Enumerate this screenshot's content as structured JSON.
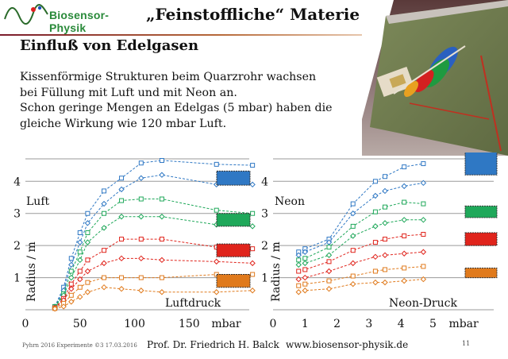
{
  "header": {
    "logo_text_main": "Biosensor-",
    "logo_text_accent": "Physik",
    "title": "„Feinstoffliche“ Materie"
  },
  "slide": {
    "subtitle": "Einfluß von Edelgasen",
    "body_lines": [
      "Kissenförmige Strukturen beim Quarzrohr wachsen",
      "bei Füllung mit Luft und mit Neon an.",
      "Schon geringe Mengen an Edelgas (5 mbar) haben die",
      "gleiche Wirkung wie 120 mbar Luft."
    ]
  },
  "colors": {
    "blue": "#2f78c4",
    "green": "#1fa85a",
    "red": "#e0241c",
    "orange": "#e07a1c",
    "title_rule": "#7b1c2c"
  },
  "chart_data": [
    {
      "type": "line",
      "title": "Luft",
      "xlabel": "Luftdruck",
      "ylabel": "Radius / m",
      "x_unit": "mbar",
      "x_ticks": [
        "0",
        "50",
        "100",
        "150"
      ],
      "x_tick_values": [
        0,
        50,
        100,
        150
      ],
      "y_ticks": [
        "1",
        "2",
        "3",
        "4"
      ],
      "y_tick_values": [
        1,
        2,
        3,
        4
      ],
      "xlim": [
        0,
        205
      ],
      "ylim": [
        0,
        4.7
      ],
      "grid": true,
      "series": [
        {
          "color": "blue",
          "marker": "square",
          "points": [
            [
              27,
              0.1
            ],
            [
              35,
              0.7
            ],
            [
              42,
              1.6
            ],
            [
              50,
              2.4
            ],
            [
              57,
              3.0
            ],
            [
              72,
              3.7
            ],
            [
              88,
              4.1
            ],
            [
              106,
              4.57
            ],
            [
              125,
              4.65
            ],
            [
              175,
              4.53
            ],
            [
              208,
              4.5
            ]
          ]
        },
        {
          "color": "blue",
          "marker": "diamond",
          "points": [
            [
              27,
              0.1
            ],
            [
              35,
              0.6
            ],
            [
              42,
              1.4
            ],
            [
              50,
              2.1
            ],
            [
              57,
              2.7
            ],
            [
              72,
              3.3
            ],
            [
              88,
              3.75
            ],
            [
              106,
              4.1
            ],
            [
              125,
              4.2
            ],
            [
              175,
              3.9
            ],
            [
              208,
              3.9
            ]
          ]
        },
        {
          "color": "green",
          "marker": "square",
          "points": [
            [
              27,
              0.1
            ],
            [
              35,
              0.5
            ],
            [
              42,
              1.2
            ],
            [
              50,
              1.8
            ],
            [
              57,
              2.4
            ],
            [
              72,
              3.0
            ],
            [
              88,
              3.4
            ],
            [
              106,
              3.45
            ],
            [
              125,
              3.45
            ],
            [
              175,
              3.1
            ],
            [
              208,
              3.0
            ]
          ]
        },
        {
          "color": "green",
          "marker": "diamond",
          "points": [
            [
              27,
              0.08
            ],
            [
              35,
              0.45
            ],
            [
              42,
              1.0
            ],
            [
              50,
              1.55
            ],
            [
              57,
              2.1
            ],
            [
              72,
              2.55
            ],
            [
              88,
              2.9
            ],
            [
              106,
              2.9
            ],
            [
              125,
              2.9
            ],
            [
              175,
              2.65
            ],
            [
              208,
              2.6
            ]
          ]
        },
        {
          "color": "red",
          "marker": "square",
          "points": [
            [
              27,
              0.06
            ],
            [
              35,
              0.35
            ],
            [
              42,
              0.8
            ],
            [
              50,
              1.2
            ],
            [
              57,
              1.55
            ],
            [
              72,
              1.85
            ],
            [
              88,
              2.2
            ],
            [
              106,
              2.2
            ],
            [
              125,
              2.2
            ],
            [
              175,
              1.95
            ],
            [
              208,
              1.9
            ]
          ]
        },
        {
          "color": "red",
          "marker": "diamond",
          "points": [
            [
              27,
              0.05
            ],
            [
              35,
              0.3
            ],
            [
              42,
              0.65
            ],
            [
              50,
              0.95
            ],
            [
              57,
              1.2
            ],
            [
              72,
              1.45
            ],
            [
              88,
              1.6
            ],
            [
              106,
              1.6
            ],
            [
              125,
              1.55
            ],
            [
              175,
              1.5
            ],
            [
              208,
              1.45
            ]
          ]
        },
        {
          "color": "orange",
          "marker": "square",
          "points": [
            [
              27,
              0.04
            ],
            [
              35,
              0.2
            ],
            [
              42,
              0.45
            ],
            [
              50,
              0.7
            ],
            [
              57,
              0.85
            ],
            [
              72,
              1.0
            ],
            [
              88,
              1.0
            ],
            [
              106,
              1.0
            ],
            [
              125,
              1.0
            ],
            [
              175,
              1.1
            ],
            [
              208,
              1.1
            ]
          ]
        },
        {
          "color": "orange",
          "marker": "diamond",
          "points": [
            [
              27,
              0.03
            ],
            [
              35,
              0.1
            ],
            [
              42,
              0.25
            ],
            [
              50,
              0.4
            ],
            [
              57,
              0.55
            ],
            [
              72,
              0.7
            ],
            [
              88,
              0.65
            ],
            [
              106,
              0.6
            ],
            [
              125,
              0.55
            ],
            [
              175,
              0.55
            ],
            [
              208,
              0.6
            ]
          ]
        }
      ],
      "legend_boxes": [
        {
          "color": "blue",
          "center": 4.1,
          "half_height": 0.22
        },
        {
          "color": "green",
          "center": 2.8,
          "half_height": 0.2
        },
        {
          "color": "red",
          "center": 1.85,
          "half_height": 0.2
        },
        {
          "color": "orange",
          "center": 0.9,
          "half_height": 0.2
        }
      ]
    },
    {
      "type": "line",
      "title": "Neon",
      "xlabel": "Neon-Druck",
      "ylabel": "Radius / m",
      "x_unit": "mbar",
      "x_ticks": [
        "0",
        "1",
        "2",
        "3",
        "4",
        "5"
      ],
      "x_tick_values": [
        0,
        1,
        2,
        3,
        4,
        5
      ],
      "y_ticks": [
        "1",
        "2",
        "3",
        "4"
      ],
      "y_tick_values": [
        1,
        2,
        3,
        4
      ],
      "xlim": [
        0,
        6.9
      ],
      "ylim": [
        0,
        4.7
      ],
      "grid": true,
      "series": [
        {
          "color": "blue",
          "marker": "square",
          "points": [
            [
              0.8,
              1.8
            ],
            [
              1.0,
              1.9
            ],
            [
              1.75,
              2.2
            ],
            [
              2.5,
              3.3
            ],
            [
              3.2,
              4.0
            ],
            [
              3.5,
              4.15
            ],
            [
              4.1,
              4.45
            ],
            [
              4.7,
              4.55
            ]
          ]
        },
        {
          "color": "blue",
          "marker": "diamond",
          "points": [
            [
              0.8,
              1.7
            ],
            [
              1.0,
              1.8
            ],
            [
              1.75,
              2.1
            ],
            [
              2.5,
              3.0
            ],
            [
              3.2,
              3.55
            ],
            [
              3.5,
              3.7
            ],
            [
              4.1,
              3.85
            ],
            [
              4.7,
              3.95
            ]
          ]
        },
        {
          "color": "green",
          "marker": "square",
          "points": [
            [
              0.8,
              1.55
            ],
            [
              1.0,
              1.6
            ],
            [
              1.75,
              1.95
            ],
            [
              2.5,
              2.6
            ],
            [
              3.2,
              3.05
            ],
            [
              3.5,
              3.2
            ],
            [
              4.1,
              3.35
            ],
            [
              4.7,
              3.3
            ]
          ]
        },
        {
          "color": "green",
          "marker": "diamond",
          "points": [
            [
              0.8,
              1.4
            ],
            [
              1.0,
              1.45
            ],
            [
              1.75,
              1.7
            ],
            [
              2.5,
              2.3
            ],
            [
              3.2,
              2.6
            ],
            [
              3.5,
              2.7
            ],
            [
              4.1,
              2.8
            ],
            [
              4.7,
              2.8
            ]
          ]
        },
        {
          "color": "red",
          "marker": "square",
          "points": [
            [
              0.8,
              1.2
            ],
            [
              1.0,
              1.25
            ],
            [
              1.75,
              1.5
            ],
            [
              2.5,
              1.85
            ],
            [
              3.2,
              2.1
            ],
            [
              3.5,
              2.2
            ],
            [
              4.1,
              2.3
            ],
            [
              4.7,
              2.35
            ]
          ]
        },
        {
          "color": "red",
          "marker": "diamond",
          "points": [
            [
              0.8,
              0.95
            ],
            [
              1.0,
              1.0
            ],
            [
              1.75,
              1.2
            ],
            [
              2.5,
              1.45
            ],
            [
              3.2,
              1.65
            ],
            [
              3.5,
              1.7
            ],
            [
              4.1,
              1.75
            ],
            [
              4.7,
              1.8
            ]
          ]
        },
        {
          "color": "orange",
          "marker": "square",
          "points": [
            [
              0.8,
              0.75
            ],
            [
              1.0,
              0.8
            ],
            [
              1.75,
              0.9
            ],
            [
              2.5,
              1.05
            ],
            [
              3.2,
              1.2
            ],
            [
              3.5,
              1.25
            ],
            [
              4.1,
              1.3
            ],
            [
              4.7,
              1.35
            ]
          ]
        },
        {
          "color": "orange",
          "marker": "diamond",
          "points": [
            [
              0.8,
              0.55
            ],
            [
              1.0,
              0.6
            ],
            [
              1.75,
              0.65
            ],
            [
              2.5,
              0.8
            ],
            [
              3.2,
              0.85
            ],
            [
              3.5,
              0.85
            ],
            [
              4.1,
              0.9
            ],
            [
              4.7,
              0.95
            ]
          ]
        }
      ],
      "legend_boxes": [
        {
          "color": "blue",
          "center": 4.6,
          "half_height": 0.4
        },
        {
          "color": "green",
          "center": 3.05,
          "half_height": 0.18
        },
        {
          "color": "red",
          "center": 2.2,
          "half_height": 0.2
        },
        {
          "color": "orange",
          "center": 1.15,
          "half_height": 0.15
        }
      ]
    }
  ],
  "footer": {
    "small": "Pyhrn 2016 Experimente ©3 17.03.2016",
    "author": "Prof. Dr. Friedrich H. Balck",
    "url": "www.biosensor-physik.de",
    "page": "11"
  }
}
